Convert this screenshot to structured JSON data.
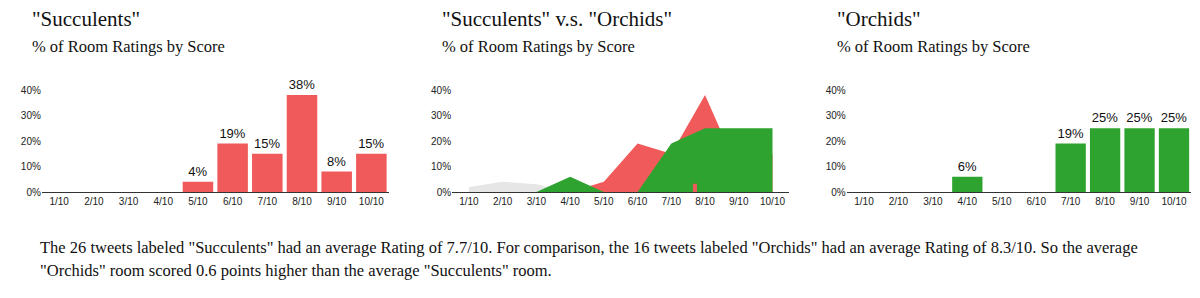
{
  "chart_data": [
    {
      "type": "bar",
      "title": "\"Succulents\"",
      "subtitle": "% of Room Ratings by Score",
      "categories": [
        "1/10",
        "2/10",
        "3/10",
        "4/10",
        "5/10",
        "6/10",
        "7/10",
        "8/10",
        "9/10",
        "10/10"
      ],
      "values": [
        0,
        0,
        0,
        0,
        4,
        19,
        15,
        38,
        8,
        15
      ],
      "value_labels": [
        null,
        null,
        null,
        null,
        "4%",
        "19%",
        "15%",
        "38%",
        "8%",
        "15%"
      ],
      "data_labels": true,
      "color": "#f05a5a",
      "ylim": [
        0,
        40
      ],
      "yticks": [
        {
          "value": 0,
          "label": "0%"
        },
        {
          "value": 10,
          "label": "10%"
        },
        {
          "value": 20,
          "label": "20%"
        },
        {
          "value": 30,
          "label": "30%"
        },
        {
          "value": 40,
          "label": "40%"
        }
      ]
    },
    {
      "type": "area",
      "title": "\"Succulents\" v.s. \"Orchids\"",
      "subtitle": "% of Room Ratings by Score",
      "x": [
        1,
        2,
        3,
        4,
        5,
        6,
        7,
        8,
        9,
        10
      ],
      "xlim": [
        0.5,
        10.5
      ],
      "xticks": [
        {
          "value": 1,
          "label": "1/10"
        },
        {
          "value": 2,
          "label": "2/10"
        },
        {
          "value": 3,
          "label": "3/10"
        },
        {
          "value": 4,
          "label": "4/10"
        },
        {
          "value": 5,
          "label": "5/10"
        },
        {
          "value": 6,
          "label": "6/10"
        },
        {
          "value": 7,
          "label": "7/10"
        },
        {
          "value": 8,
          "label": "8/10"
        },
        {
          "value": 9,
          "label": "9/10"
        },
        {
          "value": 10,
          "label": "10/10"
        }
      ],
      "series": [
        {
          "color": "#e6e6e6",
          "values": [
            2,
            4,
            3,
            0,
            0,
            0,
            0,
            0,
            0,
            0
          ]
        },
        {
          "color": "#f05a5a",
          "values": [
            0,
            0,
            0,
            0,
            4,
            19,
            15,
            38,
            8,
            15
          ],
          "mean": 7.7
        },
        {
          "color": "#2fa32f",
          "values": [
            0,
            0,
            0,
            6,
            0,
            0,
            19,
            25,
            25,
            25
          ],
          "mean": 8.3
        }
      ],
      "ylim": [
        0,
        40
      ],
      "yticks": [
        {
          "value": 0,
          "label": "0%"
        },
        {
          "value": 10,
          "label": "10%"
        },
        {
          "value": 20,
          "label": "20%"
        },
        {
          "value": 30,
          "label": "30%"
        },
        {
          "value": 40,
          "label": "40%"
        }
      ]
    },
    {
      "type": "bar",
      "title": "\"Orchids\"",
      "subtitle": "% of Room Ratings by Score",
      "categories": [
        "1/10",
        "2/10",
        "3/10",
        "4/10",
        "5/10",
        "6/10",
        "7/10",
        "8/10",
        "9/10",
        "10/10"
      ],
      "values": [
        0,
        0,
        0,
        6,
        0,
        0,
        19,
        25,
        25,
        25
      ],
      "value_labels": [
        null,
        null,
        null,
        "6%",
        null,
        null,
        "19%",
        "25%",
        "25%",
        "25%"
      ],
      "data_labels": true,
      "color": "#2fa32f",
      "ylim": [
        0,
        40
      ],
      "yticks": [
        {
          "value": 0,
          "label": "0%"
        },
        {
          "value": 10,
          "label": "10%"
        },
        {
          "value": 20,
          "label": "20%"
        },
        {
          "value": 30,
          "label": "30%"
        },
        {
          "value": 40,
          "label": "40%"
        }
      ]
    }
  ],
  "caption": "The 26 tweets labeled \"Succulents\" had an average Rating of 7.7/10. For comparison, the 16 tweets labeled \"Orchids\" had an average Rating of 8.3/10. So the average \"Orchids\" room scored 0.6 points higher than the average \"Succulents\" room."
}
